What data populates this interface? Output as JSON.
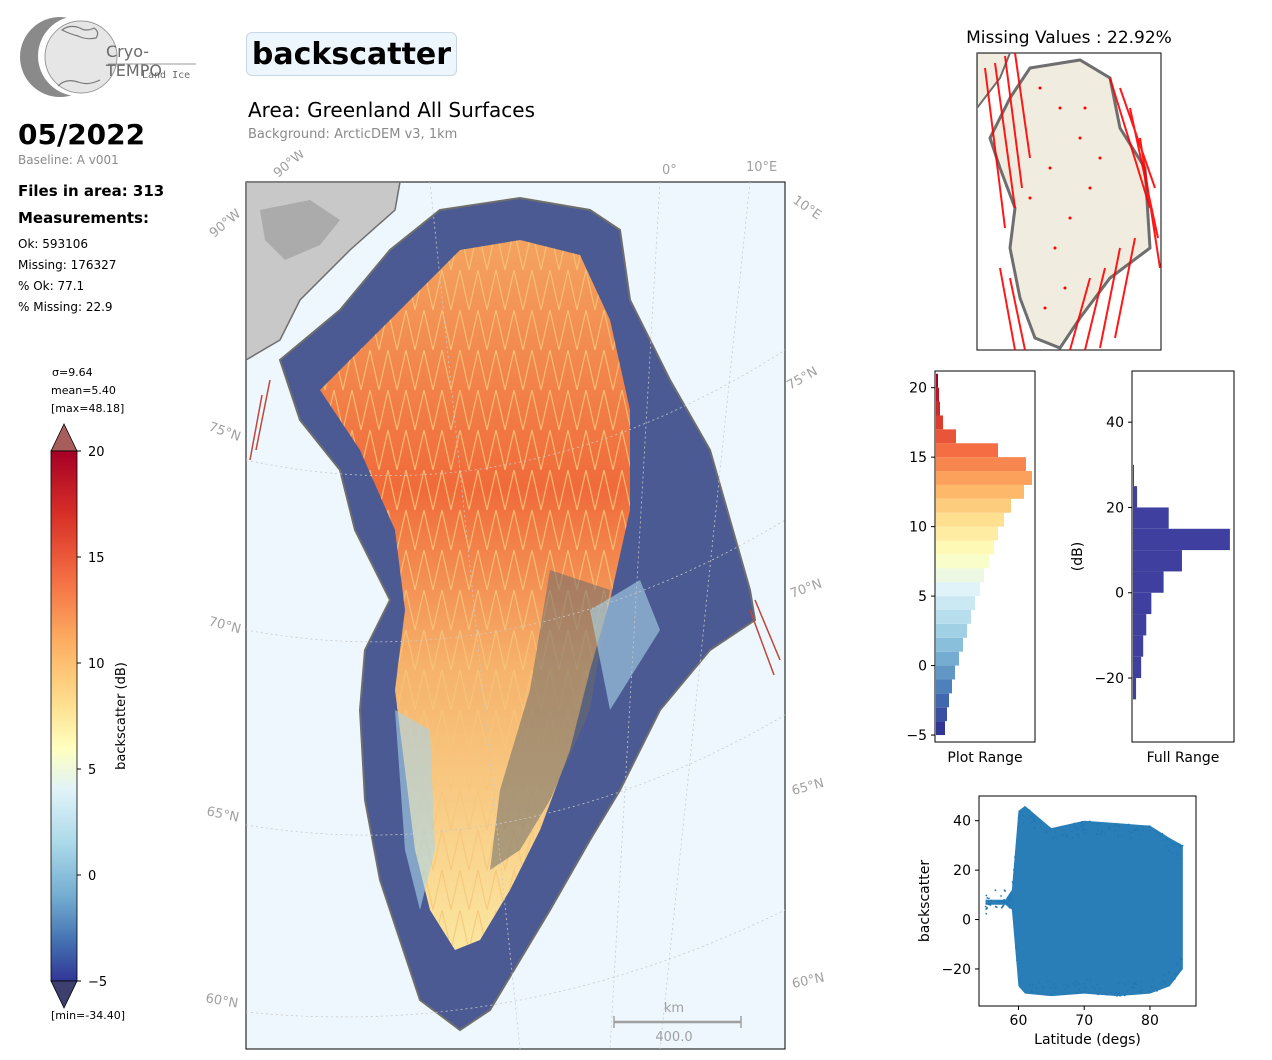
{
  "logo": {
    "name": "Cryo-TEMPO",
    "sub": "Land Ice"
  },
  "period": "05/2022",
  "baseline": "Baseline: A v001",
  "files_in_area": "Files in area: 313",
  "measurements_title": "Measurements:",
  "stats": [
    "Ok: 593106",
    "Missing: 176327",
    "% Ok: 77.1",
    "% Missing: 22.9"
  ],
  "colorbar": {
    "sigma": "σ=9.64",
    "mean": "mean=5.40",
    "max": "[max=48.18]",
    "min": "[min=-34.40]",
    "label": "backscatter (dB)",
    "ticks": [
      "20",
      "15",
      "10",
      "5",
      "0",
      "−5"
    ]
  },
  "param": "backscatter",
  "area": "Area: Greenland All Surfaces",
  "background": "Background: ArcticDEM v3, 1km",
  "map_labels": {
    "lon_90w_top": "90°W",
    "lon_0": "0°",
    "lon_10e_top": "10°E",
    "lon_90w_left": "90°W",
    "lon_10e_right": "10°E",
    "lat_75_left": "75°N",
    "lat_70_left": "70°N",
    "lat_65_left": "65°N",
    "lat_60_left": "60°N",
    "lat_75_right": "75°N",
    "lat_70_right": "70°N",
    "lat_65_right": "65°N",
    "lat_60_right": "60°N",
    "scale_unit": "km",
    "scale_value": "400.0"
  },
  "missing_title": "Missing Values : 22.92%",
  "chart_data": [
    {
      "type": "bar",
      "orientation": "horizontal",
      "xlabel": "Plot Range",
      "ylim": [
        -5.5,
        21.2
      ],
      "yticks": [
        "20",
        "15",
        "10",
        "5",
        "0",
        "−5"
      ],
      "bins": [
        -5,
        -4,
        -3,
        -2,
        -1,
        0,
        1,
        2,
        3,
        4,
        5,
        6,
        7,
        8,
        9,
        10,
        11,
        12,
        13,
        14,
        15,
        16,
        17,
        18,
        19,
        20
      ],
      "values": [
        9,
        11,
        13,
        16,
        19,
        23,
        27,
        31,
        35,
        39,
        44,
        48,
        53,
        58,
        62,
        68,
        75,
        88,
        96,
        90,
        62,
        20,
        7,
        4,
        3,
        2
      ]
    },
    {
      "type": "bar",
      "orientation": "horizontal",
      "xlabel": "Full Range",
      "ylabel": "(dB)",
      "ylim": [
        -35,
        52
      ],
      "yticks": [
        "40",
        "20",
        "0",
        "−20"
      ],
      "bins": [
        -25,
        -20,
        -15,
        -10,
        -5,
        0,
        5,
        10,
        15,
        20,
        25
      ],
      "values": [
        3,
        8,
        10,
        13,
        18,
        30,
        48,
        95,
        35,
        4,
        1
      ]
    },
    {
      "type": "scatter",
      "xlabel": "Latitude (degs)",
      "ylabel": "backscatter",
      "xlim": [
        54,
        87
      ],
      "ylim": [
        -35,
        50
      ],
      "xticks": [
        "60",
        "70",
        "80"
      ],
      "yticks": [
        "40",
        "20",
        "0",
        "−20"
      ],
      "envelope": [
        {
          "x": 55,
          "ymin": 6,
          "ymax": 8
        },
        {
          "x": 58,
          "ymin": 6,
          "ymax": 8
        },
        {
          "x": 59,
          "ymin": 4,
          "ymax": 12
        },
        {
          "x": 60,
          "ymin": -27,
          "ymax": 44
        },
        {
          "x": 61,
          "ymin": -30,
          "ymax": 46
        },
        {
          "x": 65,
          "ymin": -31,
          "ymax": 37
        },
        {
          "x": 70,
          "ymin": -30,
          "ymax": 40
        },
        {
          "x": 75,
          "ymin": -31,
          "ymax": 39
        },
        {
          "x": 80,
          "ymin": -30,
          "ymax": 38
        },
        {
          "x": 83,
          "ymin": -27,
          "ymax": 33
        },
        {
          "x": 85,
          "ymin": -20,
          "ymax": 30
        }
      ]
    }
  ]
}
